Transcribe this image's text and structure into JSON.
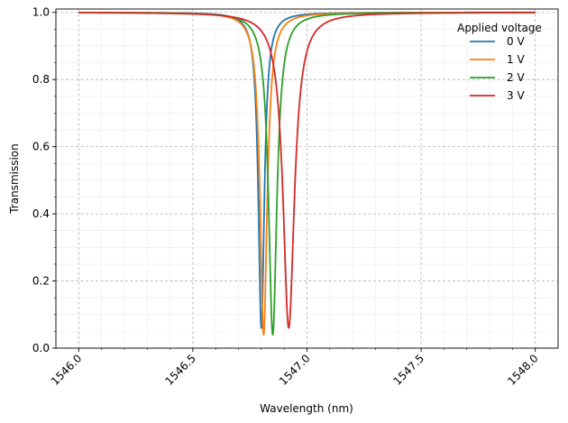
{
  "chart_data": {
    "type": "line",
    "title": "",
    "xlabel": "Wavelength (nm)",
    "ylabel": "Transmission",
    "xlim": [
      1545.9,
      1548.1
    ],
    "ylim": [
      0.0,
      1.01
    ],
    "xticks": [
      1546.0,
      1546.5,
      1547.0,
      1547.5,
      1548.0
    ],
    "xtick_labels": [
      "1546.0",
      "1546.5",
      "1547.0",
      "1547.5",
      "1548.0"
    ],
    "yticks": [
      0.0,
      0.2,
      0.4,
      0.6,
      0.8,
      1.0
    ],
    "ytick_labels": [
      "0.0",
      "0.2",
      "0.4",
      "0.6",
      "0.8",
      "1.0"
    ],
    "grid": true,
    "minor_grid": true,
    "legend": {
      "title": "Applied voltage",
      "position": "top-right"
    },
    "series": [
      {
        "name": "0 V",
        "color": "#1f77b4",
        "center": 1546.8,
        "min": 0.06,
        "width": 0.016
      },
      {
        "name": "1 V",
        "color": "#ff7f0e",
        "center": 1546.81,
        "min": 0.04,
        "width": 0.019
      },
      {
        "name": "2 V",
        "color": "#2ca02c",
        "center": 1546.85,
        "min": 0.04,
        "width": 0.022
      },
      {
        "name": "3 V",
        "color": "#d62728",
        "center": 1546.92,
        "min": 0.06,
        "width": 0.03
      }
    ]
  }
}
